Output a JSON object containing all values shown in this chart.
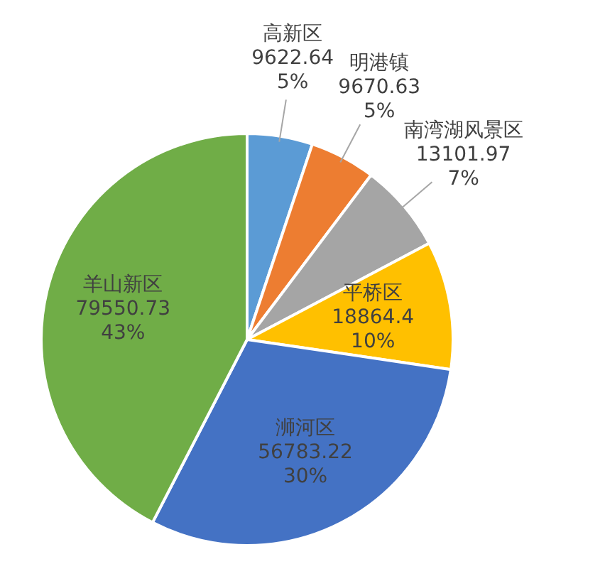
{
  "chart_data": {
    "type": "pie",
    "categories": [
      "高新区",
      "明港镇",
      "南湾湖风景区",
      "平桥区",
      "浉河区",
      "羊山新区"
    ],
    "values": [
      9622.64,
      9670.63,
      13101.97,
      18864.4,
      56783.22,
      79550.73
    ],
    "colors": [
      "#5b9bd5",
      "#ed7d31",
      "#a5a5a5",
      "#ffc000",
      "#4472c4",
      "#70ad47"
    ],
    "value_labels": [
      "9622.64\n5%",
      "9670.63\n5%",
      "13101.97\n7%",
      "18864.4\n10%",
      "56783.22\n30%",
      "79550.73\n43%"
    ],
    "legend": false
  }
}
